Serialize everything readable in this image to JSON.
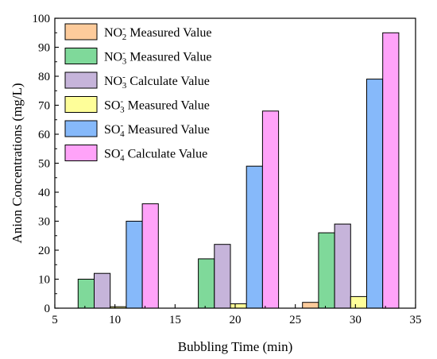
{
  "chart_data": {
    "type": "bar",
    "xlabel": "Bubbling Time (min)",
    "ylabel": "Anion Concentrations (mg/L)",
    "xlim": [
      5,
      35
    ],
    "ylim": [
      0,
      100
    ],
    "xticks": [
      "5",
      "10",
      "15",
      "20",
      "25",
      "30",
      "35"
    ],
    "yticks": [
      "0",
      "10",
      "20",
      "30",
      "40",
      "50",
      "60",
      "70",
      "80",
      "90",
      "100"
    ],
    "x": [
      10,
      20,
      30
    ],
    "legend_position": "top-left",
    "grid": false,
    "series": [
      {
        "name": "NO2- Measured Value",
        "ion": "NO",
        "sub": "2",
        "sup": "-",
        "label": "Measured Value",
        "color": "#FDCB9B",
        "values": [
          0,
          0,
          2
        ]
      },
      {
        "name": "NO3- Measured Value",
        "ion": "NO",
        "sub": "3",
        "sup": "-",
        "label": "Measured Value",
        "color": "#7FD99A",
        "values": [
          10,
          17,
          26
        ]
      },
      {
        "name": "NO3- Calculate Value",
        "ion": "NO",
        "sub": "3",
        "sup": "-",
        "label": "Calculate Value",
        "color": "#C6B4DA",
        "values": [
          12,
          22,
          29
        ]
      },
      {
        "name": "SO3- Measured Value",
        "ion": "SO",
        "sub": "3",
        "sup": "-",
        "label": "Measured Value",
        "color": "#FEFE99",
        "values": [
          0.5,
          1.5,
          4
        ]
      },
      {
        "name": "SO4- Measured Value",
        "ion": "SO",
        "sub": "4",
        "sup": "-",
        "label": "Measured Value",
        "color": "#86B9FA",
        "values": [
          30,
          49,
          79
        ]
      },
      {
        "name": "SO4- Calculate Value",
        "ion": "SO",
        "sub": "4",
        "sup": "-",
        "label": "Calculate Value",
        "color": "#FFA3F9",
        "values": [
          36,
          68,
          95
        ]
      }
    ]
  }
}
